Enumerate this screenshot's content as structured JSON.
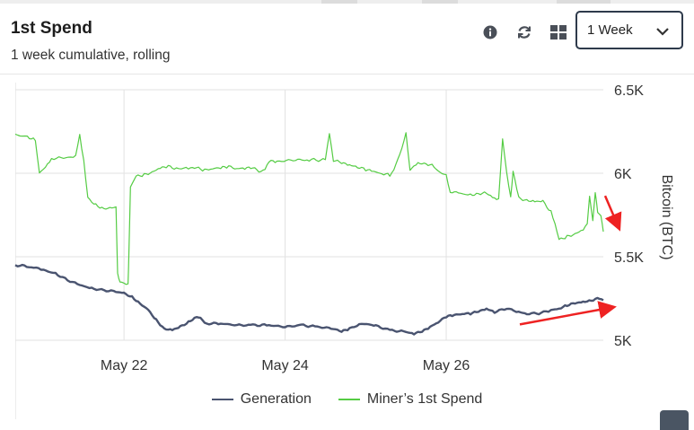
{
  "header": {
    "title": "1st Spend",
    "subtitle": "1 week cumulative, rolling",
    "range_select": {
      "value": "1 Week"
    }
  },
  "toolbar": {
    "icons": [
      "info-icon",
      "refresh-icon",
      "grid-view-icon",
      "chevron-down-icon"
    ]
  },
  "colors": {
    "generation": "#4a5470",
    "spend": "#55cc44",
    "annotation_arrow": "#ee2222",
    "grid": "#e2e2e2"
  },
  "chart_data": {
    "type": "line",
    "title": "1st Spend",
    "subtitle": "1 week cumulative, rolling",
    "xlabel": "",
    "ylabel": "Bitcoin (BTC)",
    "ylim": [
      5000,
      6500
    ],
    "y_ticks": [
      5000,
      5500,
      6000,
      6500
    ],
    "y_tick_labels": [
      "5K",
      "5.5K",
      "6K",
      "6.5K"
    ],
    "x_ticks": [
      2,
      4,
      6
    ],
    "x_tick_labels": [
      "May 22",
      "May 24",
      "May 26"
    ],
    "xlim": [
      0.65,
      7.95
    ],
    "grid": true,
    "legend_position": "bottom",
    "series": [
      {
        "name": "Generation",
        "color": "#4a5470",
        "points": [
          [
            0.65,
            5450
          ],
          [
            0.85,
            5440
          ],
          [
            1.0,
            5420
          ],
          [
            1.15,
            5400
          ],
          [
            1.3,
            5360
          ],
          [
            1.45,
            5330
          ],
          [
            1.6,
            5310
          ],
          [
            1.75,
            5300
          ],
          [
            1.9,
            5290
          ],
          [
            2.0,
            5280
          ],
          [
            2.1,
            5260
          ],
          [
            2.2,
            5220
          ],
          [
            2.3,
            5180
          ],
          [
            2.4,
            5120
          ],
          [
            2.5,
            5070
          ],
          [
            2.6,
            5060
          ],
          [
            2.7,
            5080
          ],
          [
            2.8,
            5110
          ],
          [
            2.9,
            5140
          ],
          [
            2.95,
            5130
          ],
          [
            3.0,
            5100
          ],
          [
            3.2,
            5100
          ],
          [
            3.4,
            5090
          ],
          [
            3.6,
            5090
          ],
          [
            3.8,
            5090
          ],
          [
            4.0,
            5080
          ],
          [
            4.2,
            5090
          ],
          [
            4.4,
            5080
          ],
          [
            4.6,
            5070
          ],
          [
            4.7,
            5050
          ],
          [
            4.8,
            5070
          ],
          [
            4.95,
            5100
          ],
          [
            5.1,
            5090
          ],
          [
            5.3,
            5060
          ],
          [
            5.5,
            5050
          ],
          [
            5.6,
            5040
          ],
          [
            5.7,
            5050
          ],
          [
            5.8,
            5080
          ],
          [
            5.9,
            5110
          ],
          [
            6.0,
            5140
          ],
          [
            6.1,
            5150
          ],
          [
            6.2,
            5160
          ],
          [
            6.3,
            5160
          ],
          [
            6.4,
            5170
          ],
          [
            6.5,
            5190
          ],
          [
            6.6,
            5170
          ],
          [
            6.75,
            5190
          ],
          [
            6.9,
            5170
          ],
          [
            7.0,
            5160
          ],
          [
            7.15,
            5160
          ],
          [
            7.3,
            5180
          ],
          [
            7.4,
            5190
          ],
          [
            7.5,
            5210
          ],
          [
            7.6,
            5220
          ],
          [
            7.7,
            5230
          ],
          [
            7.8,
            5240
          ],
          [
            7.9,
            5250
          ],
          [
            7.95,
            5240
          ]
        ]
      },
      {
        "name": "Miner's 1st Spend",
        "color": "#55cc44",
        "points": [
          [
            0.65,
            6230
          ],
          [
            0.8,
            6220
          ],
          [
            0.9,
            6200
          ],
          [
            0.95,
            6000
          ],
          [
            1.05,
            6050
          ],
          [
            1.1,
            6090
          ],
          [
            1.25,
            6090
          ],
          [
            1.4,
            6100
          ],
          [
            1.45,
            6230
          ],
          [
            1.5,
            6080
          ],
          [
            1.55,
            5850
          ],
          [
            1.65,
            5810
          ],
          [
            1.75,
            5790
          ],
          [
            1.85,
            5790
          ],
          [
            1.9,
            5790
          ],
          [
            1.92,
            5400
          ],
          [
            1.95,
            5350
          ],
          [
            2.05,
            5330
          ],
          [
            2.06,
            5500
          ],
          [
            2.08,
            5920
          ],
          [
            2.15,
            5980
          ],
          [
            2.25,
            5990
          ],
          [
            2.35,
            6010
          ],
          [
            2.45,
            6030
          ],
          [
            2.55,
            6040
          ],
          [
            2.65,
            6030
          ],
          [
            2.8,
            6030
          ],
          [
            2.9,
            6030
          ],
          [
            3.0,
            6020
          ],
          [
            3.1,
            6030
          ],
          [
            3.2,
            6030
          ],
          [
            3.3,
            6040
          ],
          [
            3.4,
            6030
          ],
          [
            3.5,
            6030
          ],
          [
            3.6,
            6030
          ],
          [
            3.7,
            6010
          ],
          [
            3.75,
            6030
          ],
          [
            3.8,
            6070
          ],
          [
            3.9,
            6070
          ],
          [
            4.1,
            6080
          ],
          [
            4.3,
            6080
          ],
          [
            4.5,
            6080
          ],
          [
            4.55,
            6240
          ],
          [
            4.6,
            6080
          ],
          [
            4.7,
            6060
          ],
          [
            4.8,
            6050
          ],
          [
            4.9,
            6040
          ],
          [
            5.0,
            6020
          ],
          [
            5.1,
            6010
          ],
          [
            5.2,
            6000
          ],
          [
            5.3,
            5990
          ],
          [
            5.35,
            6020
          ],
          [
            5.45,
            6150
          ],
          [
            5.5,
            6250
          ],
          [
            5.55,
            6020
          ],
          [
            5.65,
            6060
          ],
          [
            5.75,
            6060
          ],
          [
            5.85,
            6040
          ],
          [
            5.9,
            6010
          ],
          [
            6.0,
            5990
          ],
          [
            6.05,
            5890
          ],
          [
            6.15,
            5880
          ],
          [
            6.3,
            5870
          ],
          [
            6.4,
            5880
          ],
          [
            6.5,
            5880
          ],
          [
            6.55,
            5860
          ],
          [
            6.6,
            5850
          ],
          [
            6.65,
            5850
          ],
          [
            6.7,
            6200
          ],
          [
            6.75,
            6000
          ],
          [
            6.8,
            5860
          ],
          [
            6.83,
            6010
          ],
          [
            6.9,
            5850
          ],
          [
            7.0,
            5840
          ],
          [
            7.1,
            5830
          ],
          [
            7.2,
            5830
          ],
          [
            7.3,
            5770
          ],
          [
            7.35,
            5700
          ],
          [
            7.4,
            5600
          ],
          [
            7.5,
            5620
          ],
          [
            7.6,
            5640
          ],
          [
            7.7,
            5660
          ],
          [
            7.75,
            5690
          ],
          [
            7.78,
            5860
          ],
          [
            7.82,
            5720
          ],
          [
            7.85,
            5880
          ],
          [
            7.88,
            5760
          ],
          [
            7.92,
            5750
          ],
          [
            7.95,
            5650
          ]
        ]
      }
    ],
    "annotations": [
      {
        "type": "arrow",
        "color": "#ee2222",
        "description": "points down-right at Miner's 1st Spend series end"
      },
      {
        "type": "arrow",
        "color": "#ee2222",
        "description": "points right at Generation series end"
      }
    ]
  },
  "legend": {
    "items": [
      {
        "label": "Generation",
        "color": "#4a5470"
      },
      {
        "label": "Miner’s 1st Spend",
        "color": "#55cc44"
      }
    ]
  }
}
